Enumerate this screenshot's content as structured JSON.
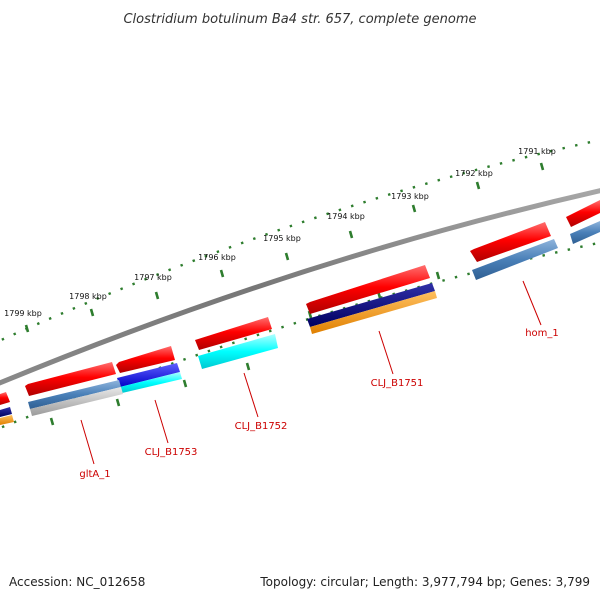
{
  "title": "Clostridium botulinum Ba4 str. 657, complete genome",
  "footer": {
    "accession": "Accession: NC_012658",
    "summary": "Topology: circular; Length: 3,977,794 bp; Genes: 3,799"
  },
  "scale_ticks": [
    "1791 kbp",
    "1792 kbp",
    "1793 kbp",
    "1794 kbp",
    "1795 kbp",
    "1796 kbp",
    "1797 kbp",
    "1798 kbp",
    "1799 kbp"
  ],
  "gene_labels": [
    "hom_1",
    "CLJ_B1751",
    "CLJ_B1752",
    "CLJ_B1753",
    "gltA_1"
  ],
  "colors": {
    "backbone": "#808080",
    "ticks": "#2e7d2e",
    "gene_forward": "#ff0000",
    "label_red": "#cc0000",
    "steel_blue": "#4a80b8",
    "navy": "#000080",
    "blue": "#0000ff",
    "cyan": "#00ffff",
    "orange": "#ff9900",
    "silver": "#c0c0c0"
  }
}
